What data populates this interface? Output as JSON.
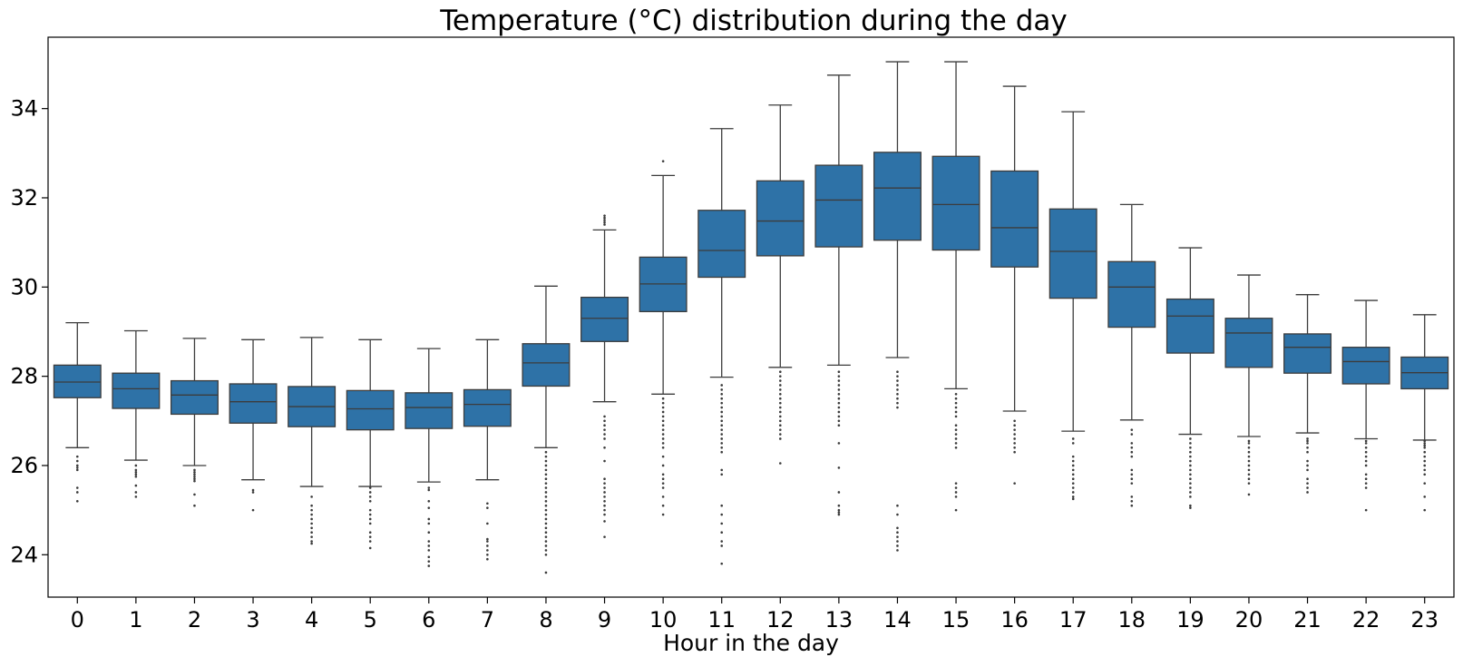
{
  "chart_data": {
    "type": "box",
    "title": "Temperature (°C) distribution during the day",
    "xlabel": "Hour in the day",
    "ylabel": "",
    "ylim": [
      23.05,
      35.6
    ],
    "yticks": [
      24,
      26,
      28,
      30,
      32,
      34
    ],
    "grid": false,
    "box_color": "#2e72a7",
    "line_color": "#3c3c3c",
    "categories": [
      "0",
      "1",
      "2",
      "3",
      "4",
      "5",
      "6",
      "7",
      "8",
      "9",
      "10",
      "11",
      "12",
      "13",
      "14",
      "15",
      "16",
      "17",
      "18",
      "19",
      "20",
      "21",
      "22",
      "23"
    ],
    "boxes": [
      {
        "q1": 27.52,
        "median": 27.87,
        "q3": 28.25,
        "whisker_low": 26.4,
        "whisker_high": 29.2,
        "outliers": [
          26.2,
          26.1,
          26.0,
          25.95,
          25.9,
          25.5,
          25.4,
          25.2
        ]
      },
      {
        "q1": 27.28,
        "median": 27.72,
        "q3": 28.07,
        "whisker_low": 26.12,
        "whisker_high": 29.02,
        "outliers": [
          26.0,
          25.9,
          25.85,
          25.8,
          25.75,
          25.55,
          25.4,
          25.3
        ]
      },
      {
        "q1": 27.15,
        "median": 27.58,
        "q3": 27.9,
        "whisker_low": 26.0,
        "whisker_high": 28.85,
        "outliers": [
          25.9,
          25.85,
          25.8,
          25.75,
          25.7,
          25.65,
          25.35,
          25.1
        ]
      },
      {
        "q1": 26.95,
        "median": 27.43,
        "q3": 27.83,
        "whisker_low": 25.68,
        "whisker_high": 28.82,
        "outliers": [
          25.45,
          25.4,
          25.0
        ]
      },
      {
        "q1": 26.87,
        "median": 27.32,
        "q3": 27.77,
        "whisker_low": 25.53,
        "whisker_high": 28.87,
        "outliers": [
          25.3,
          25.1,
          25.0,
          24.9,
          24.8,
          24.7,
          24.6,
          24.5,
          24.4,
          24.3,
          24.25
        ]
      },
      {
        "q1": 26.8,
        "median": 27.27,
        "q3": 27.68,
        "whisker_low": 25.53,
        "whisker_high": 28.82,
        "outliers": [
          25.5,
          25.4,
          25.3,
          25.2,
          25.0,
          24.9,
          24.8,
          24.7,
          24.5,
          24.4,
          24.3,
          24.15
        ]
      },
      {
        "q1": 26.83,
        "median": 27.3,
        "q3": 27.63,
        "whisker_low": 25.63,
        "whisker_high": 28.62,
        "outliers": [
          25.5,
          25.45,
          25.2,
          25.05,
          24.8,
          24.7,
          24.5,
          24.3,
          24.2,
          24.1,
          23.95,
          23.85,
          23.75
        ]
      },
      {
        "q1": 26.88,
        "median": 27.37,
        "q3": 27.7,
        "whisker_low": 25.68,
        "whisker_high": 28.82,
        "outliers": [
          25.15,
          25.05,
          24.7,
          24.35,
          24.3,
          24.2,
          24.1,
          24.0,
          23.9
        ]
      },
      {
        "q1": 27.78,
        "median": 28.3,
        "q3": 28.73,
        "whisker_low": 26.4,
        "whisker_high": 30.02,
        "outliers": [
          26.3,
          26.2,
          26.1,
          26.0,
          25.9,
          25.8,
          25.7,
          25.6,
          25.5,
          25.4,
          25.3,
          25.2,
          25.1,
          25.0,
          24.9,
          24.8,
          24.7,
          24.6,
          24.5,
          24.4,
          24.3,
          24.2,
          24.1,
          24.0,
          23.6
        ]
      },
      {
        "q1": 28.78,
        "median": 29.3,
        "q3": 29.77,
        "whisker_low": 27.43,
        "whisker_high": 31.28,
        "outliers": [
          31.6,
          31.55,
          31.5,
          31.45,
          31.4,
          27.1,
          27.0,
          26.9,
          26.8,
          26.7,
          26.6,
          26.4,
          26.1,
          25.7,
          25.6,
          25.5,
          25.4,
          25.3,
          25.2,
          25.1,
          25.0,
          24.9,
          24.75,
          24.4
        ]
      },
      {
        "q1": 29.45,
        "median": 30.07,
        "q3": 30.67,
        "whisker_low": 27.6,
        "whisker_high": 32.5,
        "outliers": [
          32.82,
          27.5,
          27.4,
          27.3,
          27.2,
          27.1,
          27.0,
          26.9,
          26.8,
          26.7,
          26.6,
          26.5,
          26.4,
          26.2,
          26.0,
          25.8,
          25.7,
          25.6,
          25.5,
          25.3,
          25.1,
          24.9
        ]
      },
      {
        "q1": 30.22,
        "median": 30.82,
        "q3": 31.72,
        "whisker_low": 27.98,
        "whisker_high": 33.55,
        "outliers": [
          27.8,
          27.7,
          27.6,
          27.5,
          27.4,
          27.3,
          27.2,
          27.1,
          27.0,
          26.9,
          26.8,
          26.7,
          26.6,
          26.5,
          26.4,
          26.3,
          25.9,
          25.8,
          25.1,
          24.9,
          24.7,
          24.5,
          24.3,
          24.2,
          23.8
        ]
      },
      {
        "q1": 30.7,
        "median": 31.48,
        "q3": 32.38,
        "whisker_low": 28.2,
        "whisker_high": 34.08,
        "outliers": [
          28.1,
          28.0,
          27.9,
          27.8,
          27.7,
          27.6,
          27.5,
          27.4,
          27.3,
          27.2,
          27.1,
          27.0,
          26.9,
          26.8,
          26.7,
          26.6,
          26.05
        ]
      },
      {
        "q1": 30.9,
        "median": 31.95,
        "q3": 32.73,
        "whisker_low": 28.25,
        "whisker_high": 34.75,
        "outliers": [
          28.1,
          28.0,
          27.9,
          27.8,
          27.7,
          27.6,
          27.5,
          27.4,
          27.3,
          27.2,
          27.1,
          27.0,
          26.9,
          26.5,
          25.95,
          25.4,
          25.1,
          25.0,
          24.95,
          24.9
        ]
      },
      {
        "q1": 31.05,
        "median": 32.22,
        "q3": 33.02,
        "whisker_low": 28.42,
        "whisker_high": 35.05,
        "outliers": [
          28.1,
          28.0,
          27.9,
          27.8,
          27.7,
          27.6,
          27.5,
          27.4,
          27.3,
          25.1,
          24.9,
          24.6,
          24.5,
          24.4,
          24.3,
          24.2,
          24.1
        ]
      },
      {
        "q1": 30.83,
        "median": 31.85,
        "q3": 32.93,
        "whisker_low": 27.72,
        "whisker_high": 35.05,
        "outliers": [
          27.6,
          27.5,
          27.4,
          27.3,
          27.2,
          27.1,
          26.9,
          26.8,
          26.7,
          26.6,
          26.5,
          26.4,
          25.6,
          25.5,
          25.4,
          25.3,
          25.0
        ]
      },
      {
        "q1": 30.45,
        "median": 31.33,
        "q3": 32.6,
        "whisker_low": 27.22,
        "whisker_high": 34.5,
        "outliers": [
          27.0,
          26.9,
          26.8,
          26.7,
          26.6,
          26.5,
          26.4,
          26.3,
          25.6
        ]
      },
      {
        "q1": 29.75,
        "median": 30.8,
        "q3": 31.75,
        "whisker_low": 26.77,
        "whisker_high": 33.93,
        "outliers": [
          26.6,
          26.5,
          26.2,
          26.1,
          26.0,
          25.9,
          25.8,
          25.7,
          25.6,
          25.5,
          25.4,
          25.3,
          25.25
        ]
      },
      {
        "q1": 29.1,
        "median": 30.0,
        "q3": 30.57,
        "whisker_low": 27.02,
        "whisker_high": 31.85,
        "outliers": [
          26.8,
          26.7,
          26.5,
          26.4,
          26.3,
          26.2,
          25.9,
          25.8,
          25.7,
          25.6,
          25.3,
          25.2,
          25.1
        ]
      },
      {
        "q1": 28.52,
        "median": 29.35,
        "q3": 29.73,
        "whisker_low": 26.7,
        "whisker_high": 30.88,
        "outliers": [
          26.6,
          26.5,
          26.4,
          26.3,
          26.2,
          26.1,
          26.0,
          25.9,
          25.8,
          25.7,
          25.6,
          25.5,
          25.4,
          25.3,
          25.1,
          25.05
        ]
      },
      {
        "q1": 28.2,
        "median": 28.97,
        "q3": 29.3,
        "whisker_low": 26.65,
        "whisker_high": 30.27,
        "outliers": [
          26.55,
          26.5,
          26.4,
          26.3,
          26.2,
          26.1,
          26.0,
          25.9,
          25.8,
          25.7,
          25.6,
          25.35
        ]
      },
      {
        "q1": 28.07,
        "median": 28.65,
        "q3": 28.95,
        "whisker_low": 26.73,
        "whisker_high": 29.83,
        "outliers": [
          26.6,
          26.55,
          26.5,
          26.4,
          26.3,
          26.1,
          26.0,
          25.9,
          25.7,
          25.6,
          25.5,
          25.4
        ]
      },
      {
        "q1": 27.83,
        "median": 28.33,
        "q3": 28.65,
        "whisker_low": 26.6,
        "whisker_high": 29.7,
        "outliers": [
          26.55,
          26.5,
          26.4,
          26.3,
          26.2,
          26.1,
          26.0,
          25.8,
          25.7,
          25.6,
          25.5,
          25.0
        ]
      },
      {
        "q1": 27.72,
        "median": 28.08,
        "q3": 28.43,
        "whisker_low": 26.57,
        "whisker_high": 29.38,
        "outliers": [
          26.55,
          26.5,
          26.45,
          26.4,
          26.3,
          26.2,
          26.1,
          26.0,
          25.9,
          25.8,
          25.6,
          25.3,
          25.0
        ]
      }
    ]
  }
}
